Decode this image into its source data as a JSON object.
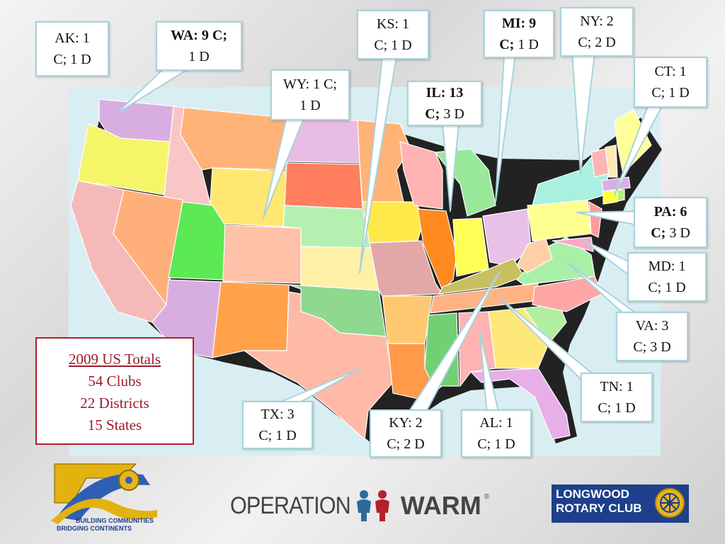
{
  "callouts": {
    "ak": {
      "line1": "AK: 1",
      "line2": "C; 1 D"
    },
    "wa": {
      "line1": "WA: 9 C;",
      "line2": "1 D"
    },
    "wy": {
      "line1": "WY: 1 C;",
      "line2": "1 D"
    },
    "ks": {
      "line1": "KS: 1",
      "line2": "C; 1 D"
    },
    "il": {
      "line1": "IL:  13",
      "line2b": "C;",
      "line2": " 3 D"
    },
    "mi": {
      "line1": "MI: 9",
      "line2b": "C;",
      "line2": " 1 D"
    },
    "ny": {
      "line1": "NY: 2",
      "line2": "C; 2 D"
    },
    "ct": {
      "line1": "CT: 1",
      "line2": "C; 1 D"
    },
    "pa": {
      "line1": "PA: 6",
      "line2b": "C;",
      "line2": " 3 D"
    },
    "md": {
      "line1": "MD: 1",
      "line2": "C; 1 D"
    },
    "va": {
      "line1": "VA: 3",
      "line2": "C; 3 D"
    },
    "tn": {
      "line1": "TN: 1",
      "line2": "C; 1 D"
    },
    "al": {
      "line1": "AL: 1",
      "line2": "C; 1 D"
    },
    "ky": {
      "line1": "KY: 2",
      "line2": "C; 2 D"
    },
    "tx": {
      "line1": "TX: 3",
      "line2": "C; 1 D"
    }
  },
  "totals": {
    "heading": "2009 US Totals",
    "clubs": "54 Clubs",
    "districts": "22 Districts",
    "states": "15 States"
  },
  "logos": {
    "left_line1": "BUILDING COMMUNITIES",
    "left_line2": "BRIDGING CONTINENTS",
    "operation": "OPERATION",
    "warm": "WARM",
    "registered": "®",
    "longwood_line1": "LONGWOOD",
    "longwood_line2": "ROTARY CLUB"
  },
  "colors": {
    "callout_border": "#a9d3dc",
    "totals_red": "#9b1b2c",
    "longwood_blue": "#1e3f8a",
    "rotary_gold": "#e7b520"
  }
}
